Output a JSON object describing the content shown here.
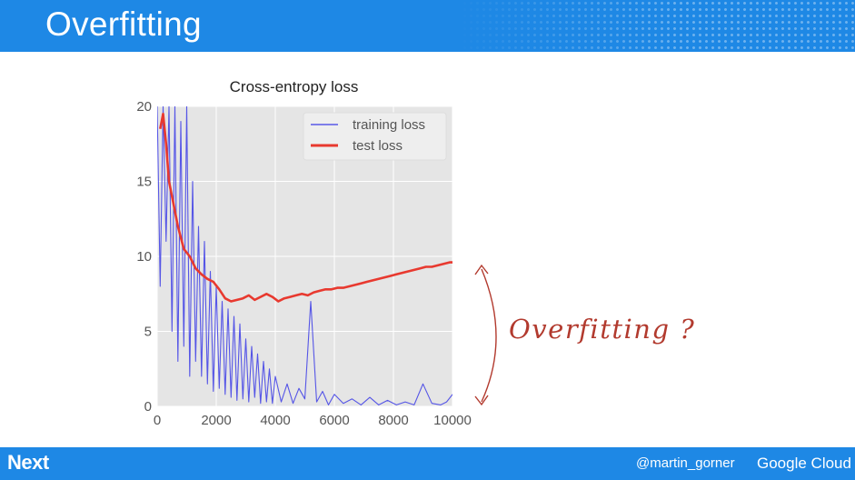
{
  "slide": {
    "title": "Overfitting",
    "footer_logo": "Next",
    "footer_handle": "@martin_gorner",
    "footer_brand": "Google Cloud"
  },
  "annotation": {
    "text": "Overfitting ?",
    "color": "#b23a2e"
  },
  "colors": {
    "header_blue": "#1e88e5",
    "plot_background": "#e5e5e5",
    "training_series": "#3c3ce6",
    "test_series": "#e8392f"
  },
  "chart_data": {
    "type": "line",
    "title": "Cross-entropy loss",
    "xlabel": "",
    "ylabel": "",
    "xlim": [
      0,
      10000
    ],
    "ylim": [
      0,
      20
    ],
    "xticks": [
      0,
      2000,
      4000,
      6000,
      8000,
      10000
    ],
    "yticks": [
      0,
      5,
      10,
      15,
      20
    ],
    "grid": true,
    "legend_position": "top-right",
    "series": [
      {
        "name": "training loss",
        "color": "#3c3ce6",
        "x": [
          0,
          100,
          200,
          300,
          400,
          500,
          600,
          700,
          800,
          900,
          1000,
          1100,
          1200,
          1300,
          1400,
          1500,
          1600,
          1700,
          1800,
          1900,
          2000,
          2100,
          2200,
          2300,
          2400,
          2500,
          2600,
          2700,
          2800,
          2900,
          3000,
          3100,
          3200,
          3300,
          3400,
          3500,
          3600,
          3700,
          3800,
          3900,
          4000,
          4200,
          4400,
          4600,
          4800,
          5000,
          5200,
          5400,
          5600,
          5800,
          6000,
          6300,
          6600,
          6900,
          7200,
          7500,
          7800,
          8100,
          8400,
          8700,
          9000,
          9300,
          9600,
          9800,
          10000
        ],
        "y": [
          20,
          8,
          20,
          11,
          20,
          5,
          20,
          3,
          19,
          4,
          20,
          2,
          15,
          3,
          12,
          2,
          11,
          1.5,
          9,
          1,
          8,
          1.2,
          7,
          0.8,
          6.5,
          0.6,
          6,
          0.4,
          5.5,
          0.5,
          4.5,
          0.3,
          4,
          0.6,
          3.5,
          0.2,
          3,
          0.3,
          2.5,
          0.2,
          2,
          0.3,
          1.5,
          0.2,
          1.2,
          0.5,
          7,
          0.3,
          1,
          0.1,
          0.8,
          0.2,
          0.5,
          0.1,
          0.6,
          0.1,
          0.4,
          0.1,
          0.3,
          0.1,
          1.5,
          0.2,
          0.1,
          0.3,
          0.8
        ]
      },
      {
        "name": "test loss",
        "color": "#e8392f",
        "x": [
          100,
          200,
          300,
          400,
          500,
          700,
          900,
          1100,
          1300,
          1500,
          1700,
          1900,
          2100,
          2300,
          2500,
          2700,
          2900,
          3100,
          3300,
          3500,
          3700,
          3900,
          4100,
          4300,
          4500,
          4700,
          4900,
          5100,
          5300,
          5500,
          5700,
          5900,
          6100,
          6300,
          6500,
          6700,
          6900,
          7100,
          7300,
          7500,
          7700,
          7900,
          8100,
          8300,
          8500,
          8700,
          8900,
          9100,
          9300,
          9500,
          9700,
          9900,
          10000
        ],
        "y": [
          18.5,
          19.5,
          17.5,
          15,
          14,
          12,
          10.5,
          10,
          9.2,
          8.8,
          8.5,
          8.3,
          7.8,
          7.2,
          7.0,
          7.1,
          7.2,
          7.4,
          7.1,
          7.3,
          7.5,
          7.3,
          7.0,
          7.2,
          7.3,
          7.4,
          7.5,
          7.4,
          7.6,
          7.7,
          7.8,
          7.8,
          7.9,
          7.9,
          8.0,
          8.1,
          8.2,
          8.3,
          8.4,
          8.5,
          8.6,
          8.7,
          8.8,
          8.9,
          9.0,
          9.1,
          9.2,
          9.3,
          9.3,
          9.4,
          9.5,
          9.6,
          9.6
        ]
      }
    ]
  }
}
